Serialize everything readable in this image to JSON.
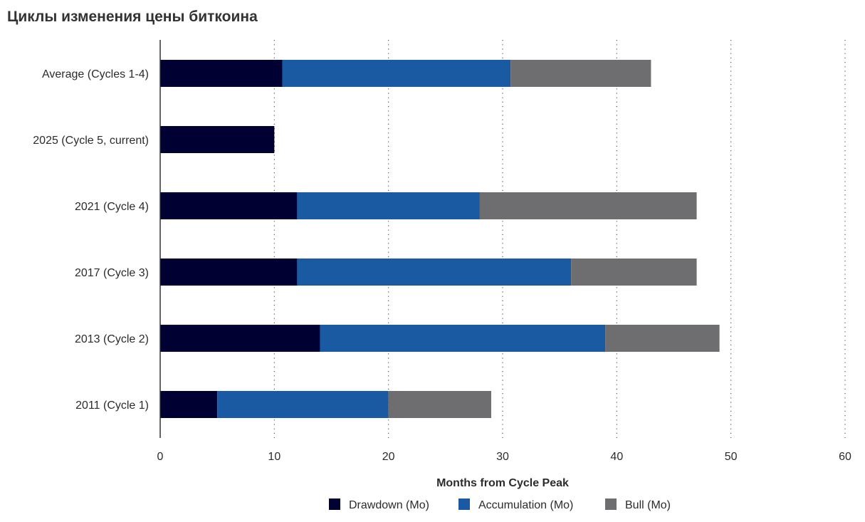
{
  "title": "Циклы изменения цены биткоина",
  "chart_data": {
    "type": "bar",
    "orientation": "horizontal",
    "stacked": true,
    "categories": [
      "Average (Cycles 1-4)",
      "2025 (Cycle 5, current)",
      "2021 (Cycle 4)",
      "2017 (Cycle 3)",
      "2013 (Cycle 2)",
      "2011 (Cycle 1)"
    ],
    "series": [
      {
        "name": "Drawdown (Mo)",
        "color": "#000033",
        "values": [
          10.7,
          10,
          12,
          12,
          14,
          5
        ]
      },
      {
        "name": "Accumulation (Mo)",
        "color": "#1a5aa3",
        "values": [
          20,
          null,
          16,
          24,
          25,
          15
        ]
      },
      {
        "name": "Bull (Mo)",
        "color": "#6e6d70",
        "values": [
          12.3,
          null,
          19,
          11,
          10,
          9
        ]
      }
    ],
    "xlabel": "Months from Cycle Peak",
    "ylabel": "",
    "xlim": [
      0,
      60
    ],
    "xticks": [
      0,
      10,
      20,
      30,
      40,
      50,
      60
    ],
    "grid": "vertical dotted",
    "legend_position": "bottom-center"
  }
}
